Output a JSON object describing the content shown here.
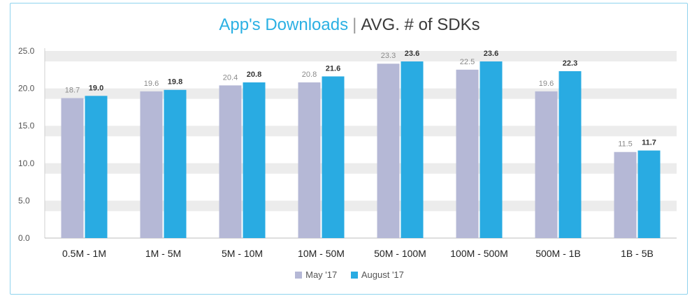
{
  "colors": {
    "may": "#b5b8d6",
    "august": "#29abe2",
    "band": "#ececec",
    "title_accent": "#2bb0e3",
    "frame": "#8fd3ee"
  },
  "chart_data": {
    "type": "bar",
    "title": "App's Downloads",
    "subtitle": "AVG. # of SDKs",
    "separator": "|",
    "xlabel": "",
    "ylabel": "",
    "categories": [
      "0.5M - 1M",
      "1M - 5M",
      "5M - 10M",
      "10M - 50M",
      "50M - 100M",
      "100M - 500M",
      "500M - 1B",
      "1B - 5B"
    ],
    "series": [
      {
        "name": "May '17",
        "values": [
          18.7,
          19.6,
          20.4,
          20.8,
          23.3,
          22.5,
          19.6,
          11.5
        ],
        "display": [
          "18.7",
          "19.6",
          "20.4",
          "20.8",
          "23.3",
          "22.5",
          "19.6",
          "11.5"
        ]
      },
      {
        "name": "August '17",
        "values": [
          19.0,
          19.8,
          20.8,
          21.6,
          23.6,
          23.6,
          22.3,
          11.7
        ],
        "display": [
          "19.0",
          "19.8",
          "20.8",
          "21.6",
          "23.6",
          "23.6",
          "22.3",
          "11.7"
        ]
      }
    ],
    "ylim": [
      0,
      25
    ],
    "yticks": [
      0,
      5,
      10,
      15,
      20,
      25
    ],
    "ytick_labels": [
      "0.0",
      "5.0",
      "10.0",
      "15.0",
      "20.0",
      "25.0"
    ],
    "grid": "horizontal bands",
    "legend": "bottom-center"
  }
}
